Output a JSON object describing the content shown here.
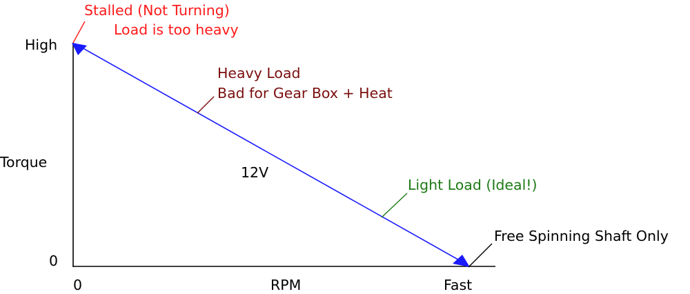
{
  "axes": {
    "y_label": "Torque",
    "y_high": "High",
    "y_zero": "0",
    "x_label": "RPM",
    "x_zero": "0",
    "x_fast": "Fast"
  },
  "line_label": "12V",
  "annotations": {
    "stalled": {
      "line1": "Stalled (Not Turning)",
      "line2": "Load is too heavy",
      "color": "#ff1a1a"
    },
    "heavy": {
      "line1": "Heavy Load",
      "line2": "Bad for Gear Box + Heat",
      "color": "#7a0e0e"
    },
    "light": {
      "line1": "Light Load (Ideal!)",
      "color": "#1e7a16"
    },
    "free": {
      "line1": "Free Spinning Shaft Only",
      "color": "#000000"
    }
  },
  "colors": {
    "torque_line": "#1a1aff",
    "axis": "#000000"
  }
}
